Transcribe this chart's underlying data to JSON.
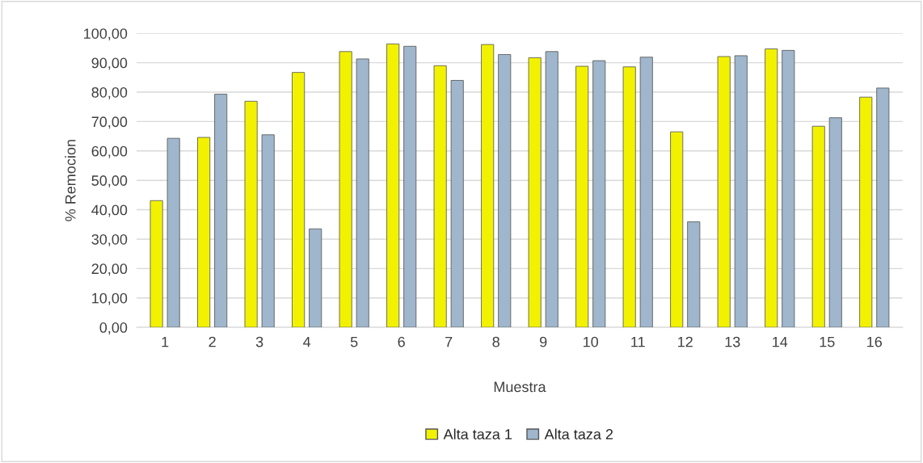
{
  "chart_data": {
    "type": "bar",
    "xlabel": "Muestra",
    "ylabel": "% Remocion",
    "categories": [
      "1",
      "2",
      "3",
      "4",
      "5",
      "6",
      "7",
      "8",
      "9",
      "10",
      "11",
      "12",
      "13",
      "14",
      "15",
      "16"
    ],
    "series": [
      {
        "name": "Alta taza 1",
        "color": "#f2f200",
        "values": [
          43.1,
          64.6,
          76.9,
          86.7,
          93.8,
          96.4,
          89.0,
          96.2,
          91.7,
          88.8,
          88.6,
          66.5,
          92.1,
          94.7,
          68.4,
          78.3
        ]
      },
      {
        "name": "Alta taza 2",
        "color": "#9fb6cc",
        "values": [
          64.3,
          79.3,
          65.5,
          33.5,
          91.3,
          95.6,
          84.0,
          92.8,
          93.8,
          90.7,
          91.9,
          35.9,
          92.4,
          94.2,
          71.3,
          81.4
        ]
      }
    ],
    "ylim": [
      0,
      100
    ],
    "yticks": [
      {
        "value": 0,
        "label": "0,00"
      },
      {
        "value": 10,
        "label": "10,00"
      },
      {
        "value": 20,
        "label": "20,00"
      },
      {
        "value": 30,
        "label": "30,00"
      },
      {
        "value": 40,
        "label": "40,00"
      },
      {
        "value": 50,
        "label": "50,00"
      },
      {
        "value": 60,
        "label": "60,00"
      },
      {
        "value": 70,
        "label": "70,00"
      },
      {
        "value": 80,
        "label": "80,00"
      },
      {
        "value": 90,
        "label": "90,00"
      },
      {
        "value": 100,
        "label": "100,00"
      }
    ],
    "grid": "y",
    "legend": "bottom"
  }
}
